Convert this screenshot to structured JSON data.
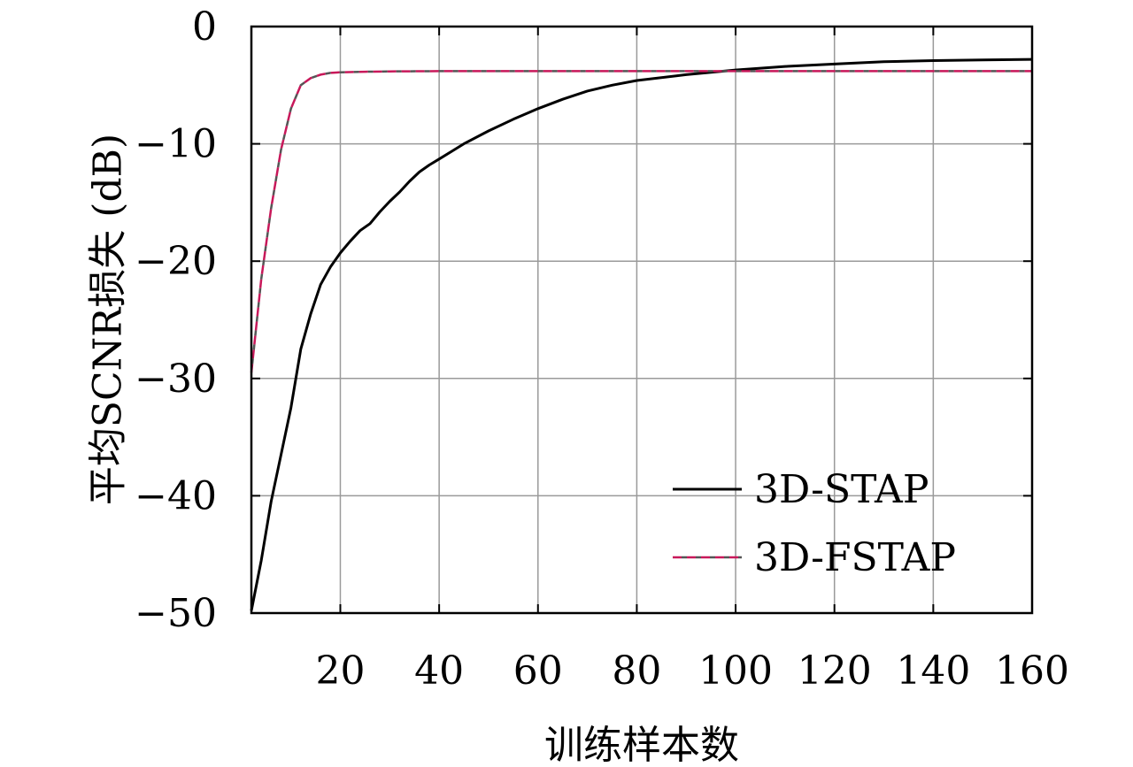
{
  "chart_data": {
    "type": "line",
    "xlabel": "训练样本数",
    "ylabel": "平均SCNR损失 (dB)",
    "xlim": [
      2,
      160
    ],
    "ylim": [
      -50,
      0
    ],
    "xticks": [
      20,
      40,
      60,
      80,
      100,
      120,
      140,
      160
    ],
    "xtick_labels": [
      "20",
      "40",
      "60",
      "80",
      "100",
      "120",
      "140",
      "160"
    ],
    "yticks": [
      0,
      -10,
      -20,
      -30,
      -40,
      -50
    ],
    "ytick_labels": [
      "0",
      "−10",
      "−20",
      "−30",
      "−40",
      "−50"
    ],
    "grid": true,
    "legend_position": "bottom-right",
    "series": [
      {
        "name": "3D-STAP",
        "color": "#000000",
        "style": "solid",
        "x": [
          2,
          4,
          6,
          8,
          10,
          12,
          14,
          16,
          18,
          20,
          22,
          24,
          26,
          28,
          30,
          32,
          34,
          36,
          38,
          40,
          45,
          50,
          55,
          60,
          65,
          70,
          75,
          80,
          90,
          100,
          110,
          120,
          130,
          140,
          150,
          160
        ],
        "y": [
          -49.8,
          -45.5,
          -40.5,
          -36.5,
          -32.5,
          -27.5,
          -24.5,
          -22.0,
          -20.5,
          -19.3,
          -18.3,
          -17.4,
          -16.8,
          -15.8,
          -14.9,
          -14.1,
          -13.2,
          -12.4,
          -11.8,
          -11.3,
          -10.0,
          -8.9,
          -7.9,
          -7.0,
          -6.2,
          -5.5,
          -5.0,
          -4.6,
          -4.1,
          -3.7,
          -3.4,
          -3.2,
          -3.0,
          -2.9,
          -2.85,
          -2.8
        ]
      },
      {
        "name": "3D-FSTAP",
        "color": "#c8185a",
        "dash_color": "#555555",
        "style": "dashed",
        "x": [
          2,
          4,
          6,
          8,
          10,
          12,
          14,
          16,
          18,
          20,
          25,
          30,
          40,
          60,
          80,
          100,
          120,
          140,
          160
        ],
        "y": [
          -29.5,
          -21.5,
          -15.5,
          -10.5,
          -7.0,
          -5.0,
          -4.4,
          -4.1,
          -3.95,
          -3.9,
          -3.85,
          -3.82,
          -3.8,
          -3.8,
          -3.8,
          -3.8,
          -3.8,
          -3.8,
          -3.8
        ]
      }
    ]
  }
}
